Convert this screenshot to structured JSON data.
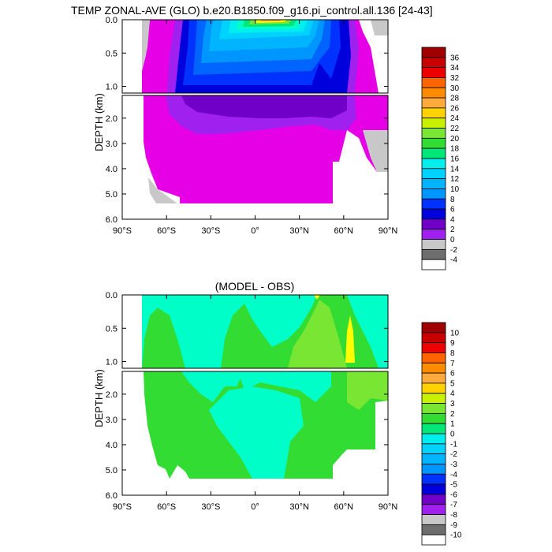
{
  "top_title": "TEMP ZONAL-AVE (GLO) b.e20.B1850.f09_g16.pi_control.all.136 [24-43]",
  "bottom_title": "(MODEL - OBS)",
  "depth_label": "DEPTH (km)",
  "colors": {
    "temp": [
      "#ffffff",
      "#6e6e6e",
      "#c8c8c8",
      "#e600e6",
      "#a020f0",
      "#7000c8",
      "#0000dc",
      "#0032ff",
      "#0064ff",
      "#0096ff",
      "#00b4ff",
      "#00d2ff",
      "#00eeee",
      "#00ffc8",
      "#00e678",
      "#32dc32",
      "#78e632",
      "#c8f000",
      "#ffff00",
      "#ffd200",
      "#ffaa3c",
      "#ff8c00",
      "#ff6400",
      "#ff2800",
      "#ee0000",
      "#c80000",
      "#a00000"
    ],
    "diff": [
      "#ffffff",
      "#6e6e6e",
      "#c8c8c8",
      "#e600e6",
      "#a020f0",
      "#7000c8",
      "#0000dc",
      "#0032ff",
      "#0064ff",
      "#0096ff",
      "#00b4ff",
      "#00d2ff",
      "#00eeee",
      "#00ffc8",
      "#00e678",
      "#32dc32",
      "#78e632",
      "#c8f000",
      "#ffff00",
      "#ffd200",
      "#ffaa3c",
      "#ff8c00",
      "#ff6400",
      "#ff2800",
      "#ee0000",
      "#c80000",
      "#a00000"
    ]
  },
  "chart_data": [
    {
      "type": "heatmap",
      "title": "TEMP ZONAL-AVE (GLO) b.e20.B1850.f09_g16.pi_control.all.136 [24-43]",
      "xlabel": "",
      "ylabel": "DEPTH (km)",
      "x_ticks": [
        "90°S",
        "60°S",
        "30°S",
        "0°",
        "30°N",
        "60°N",
        "90°N"
      ],
      "y_ticks_upper": [
        "0.0",
        "0.5",
        "1.0"
      ],
      "y_ticks_lower": [
        "2.0",
        "3.0",
        "4.0",
        "5.0",
        "6.0"
      ],
      "xlim": [
        -90,
        90
      ],
      "ylim_upper_km": [
        0,
        1.1
      ],
      "ylim_lower_km": [
        1.1,
        6.0
      ],
      "colorbar_labels": [
        "-4",
        "-2",
        "0",
        "2",
        "4",
        "6",
        "8",
        "10",
        "12",
        "14",
        "16",
        "18",
        "20",
        "22",
        "24",
        "26",
        "28",
        "30",
        "32",
        "34",
        "36"
      ]
    },
    {
      "type": "heatmap",
      "title": "(MODEL - OBS)",
      "xlabel": "",
      "ylabel": "DEPTH (km)",
      "x_ticks": [
        "90°S",
        "60°S",
        "30°S",
        "0°",
        "30°N",
        "60°N",
        "90°N"
      ],
      "y_ticks_upper": [
        "0.0",
        "0.5",
        "1.0"
      ],
      "y_ticks_lower": [
        "2.0",
        "3.0",
        "4.0",
        "5.0",
        "6.0"
      ],
      "xlim": [
        -90,
        90
      ],
      "ylim_upper_km": [
        0,
        1.1
      ],
      "ylim_lower_km": [
        1.1,
        6.0
      ],
      "colorbar_labels": [
        "-10",
        "-9",
        "-8",
        "-7",
        "-6",
        "-5",
        "-4",
        "-3",
        "-2",
        "-1",
        "0",
        "1",
        "2",
        "3",
        "4",
        "5",
        "6",
        "7",
        "8",
        "9",
        "10"
      ]
    }
  ]
}
